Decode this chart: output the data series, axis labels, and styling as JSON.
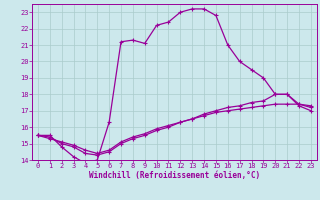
{
  "xlabel": "Windchill (Refroidissement éolien,°C)",
  "bg_color": "#cce8ec",
  "grid_color": "#aacccc",
  "line_color": "#990099",
  "spine_color": "#660066",
  "xlim": [
    -0.5,
    23.5
  ],
  "ylim": [
    14,
    23.5
  ],
  "yticks": [
    14,
    15,
    16,
    17,
    18,
    19,
    20,
    21,
    22,
    23
  ],
  "xticks": [
    0,
    1,
    2,
    3,
    4,
    5,
    6,
    7,
    8,
    9,
    10,
    11,
    12,
    13,
    14,
    15,
    16,
    17,
    18,
    19,
    20,
    21,
    22,
    23
  ],
  "line1_x": [
    0,
    1,
    2,
    3,
    4,
    5,
    6,
    7,
    8,
    9,
    10,
    11,
    12,
    13,
    14,
    15,
    16,
    17,
    18,
    19,
    20,
    21,
    22,
    23
  ],
  "line1_y": [
    15.5,
    15.5,
    14.8,
    14.2,
    13.8,
    14.0,
    16.3,
    21.2,
    21.3,
    21.1,
    22.2,
    22.4,
    23.0,
    23.2,
    23.2,
    22.8,
    21.0,
    20.0,
    19.5,
    19.0,
    18.0,
    18.0,
    17.3,
    17.0
  ],
  "line2_x": [
    0,
    1,
    2,
    3,
    4,
    5,
    6,
    7,
    8,
    9,
    10,
    11,
    12,
    13,
    14,
    15,
    16,
    17,
    18,
    19,
    20,
    21,
    22,
    23
  ],
  "line2_y": [
    15.5,
    15.4,
    15.0,
    14.8,
    14.4,
    14.3,
    14.5,
    15.0,
    15.3,
    15.5,
    15.8,
    16.0,
    16.3,
    16.5,
    16.8,
    17.0,
    17.2,
    17.3,
    17.5,
    17.6,
    18.0,
    18.0,
    17.4,
    17.2
  ],
  "line3_x": [
    0,
    1,
    2,
    3,
    4,
    5,
    6,
    7,
    8,
    9,
    10,
    11,
    12,
    13,
    14,
    15,
    16,
    17,
    18,
    19,
    20,
    21,
    22,
    23
  ],
  "line3_y": [
    15.5,
    15.3,
    15.1,
    14.9,
    14.6,
    14.4,
    14.6,
    15.1,
    15.4,
    15.6,
    15.9,
    16.1,
    16.3,
    16.5,
    16.7,
    16.9,
    17.0,
    17.1,
    17.2,
    17.3,
    17.4,
    17.4,
    17.4,
    17.3
  ],
  "tick_fontsize": 5,
  "label_fontsize": 5.5,
  "title_fontsize": 5
}
